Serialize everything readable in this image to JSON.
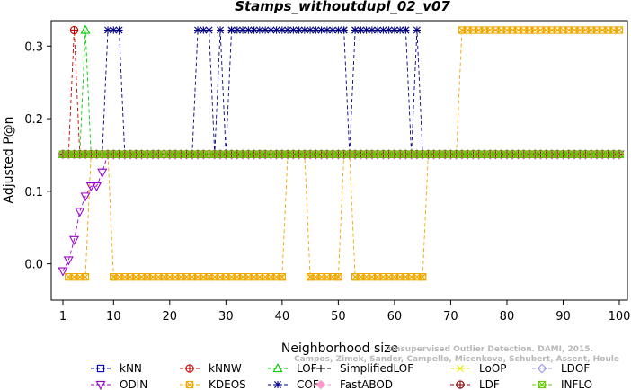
{
  "chart_data": {
    "type": "line",
    "title": "Stamps_withoutdupl_02_v07",
    "xlabel": "Neighborhood size",
    "ylabel": "Adjusted P@n",
    "xlim": [
      1,
      100
    ],
    "ylim": [
      -0.05,
      0.335
    ],
    "x_ticks": [
      1,
      10,
      20,
      30,
      40,
      50,
      60,
      70,
      80,
      90,
      100
    ],
    "y_ticks": [
      0.0,
      0.1,
      0.2,
      0.3
    ],
    "y_tick_labels": [
      "0.0",
      "0.1",
      "0.2",
      "0.3"
    ],
    "watermark": [
      "Unsupervised Outlier Detection. DAMI, 2015.",
      "Campos, Zimek, Sander, Campello, Micenkova, Schubert, Assent, Houle"
    ],
    "series": [
      {
        "name": "kNN",
        "color": "#0000cc",
        "marker": "square",
        "segments": [
          {
            "x": [
              1,
              100
            ],
            "y": 0.151,
            "type": "const"
          }
        ]
      },
      {
        "name": "kNNW",
        "color": "#cc0000",
        "marker": "circle-plus",
        "segments": [
          {
            "x": [
              1,
              2,
              3,
              4
            ],
            "y": [
              0.151,
              0.151,
              0.322,
              0.151
            ]
          },
          {
            "x": [
              4,
              100
            ],
            "y": 0.151,
            "type": "const"
          }
        ]
      },
      {
        "name": "LOF",
        "color": "#00cc00",
        "marker": "triangle-up",
        "segments": [
          {
            "x": [
              1,
              2,
              3,
              4,
              5,
              6
            ],
            "y": [
              0.151,
              0.151,
              0.151,
              0.151,
              0.322,
              0.151
            ]
          },
          {
            "x": [
              6,
              100
            ],
            "y": 0.151,
            "type": "const"
          }
        ]
      },
      {
        "name": "SimplifiedLOF",
        "color": "#000000",
        "marker": "plus",
        "segments": [
          {
            "x": [
              1,
              100
            ],
            "y": 0.151,
            "type": "const"
          }
        ]
      },
      {
        "name": "LoOP",
        "color": "#e8e800",
        "marker": "x",
        "segments": [
          {
            "x": [
              1,
              100
            ],
            "y": 0.151,
            "type": "const"
          }
        ]
      },
      {
        "name": "LDOF",
        "color": "#9999ee",
        "marker": "diamond",
        "segments": [
          {
            "x": [
              1,
              100
            ],
            "y": 0.151,
            "type": "const"
          }
        ]
      },
      {
        "name": "ODIN",
        "color": "#9900cc",
        "marker": "triangle-down",
        "segments": [
          {
            "x": [
              1,
              2,
              3,
              4,
              5,
              6,
              7,
              8,
              9
            ],
            "y": [
              -0.01,
              0.005,
              0.033,
              0.072,
              0.093,
              0.107,
              0.107,
              0.126,
              0.151
            ]
          },
          {
            "x": [
              9,
              100
            ],
            "y": 0.151,
            "type": "const"
          }
        ]
      },
      {
        "name": "KDEOS",
        "color": "#f0a800",
        "marker": "square-x",
        "segments": [
          {
            "x": [
              2,
              3,
              4,
              5,
              6,
              7,
              8,
              9,
              10
            ],
            "y": [
              -0.018,
              -0.018,
              -0.018,
              -0.018,
              0.151,
              0.151,
              0.151,
              0.151,
              -0.018
            ]
          },
          {
            "x": [
              10,
              40
            ],
            "y": -0.018,
            "type": "const"
          },
          {
            "x": [
              40,
              41,
              42,
              43,
              44,
              45
            ],
            "y": [
              -0.018,
              0.151,
              0.151,
              0.151,
              0.151,
              -0.018
            ]
          },
          {
            "x": [
              45,
              50
            ],
            "y": -0.018,
            "type": "const"
          },
          {
            "x": [
              50,
              51,
              52,
              53
            ],
            "y": [
              -0.018,
              0.151,
              0.151,
              -0.018
            ]
          },
          {
            "x": [
              53,
              65
            ],
            "y": -0.018,
            "type": "const"
          },
          {
            "x": [
              65,
              66,
              67,
              68,
              69,
              70,
              71,
              72
            ],
            "y": [
              -0.018,
              0.151,
              0.151,
              0.151,
              0.151,
              0.151,
              0.151,
              0.322
            ]
          },
          {
            "x": [
              72,
              100
            ],
            "y": 0.322,
            "type": "const"
          }
        ]
      },
      {
        "name": "COF",
        "color": "#000080",
        "marker": "asterisk",
        "segments": [
          {
            "x": [
              1,
              2,
              3,
              4,
              5,
              6,
              7,
              8,
              9,
              10,
              11,
              12,
              13
            ],
            "y": [
              0.151,
              0.151,
              0.151,
              0.151,
              0.151,
              0.151,
              0.151,
              0.151,
              0.322,
              0.322,
              0.322,
              0.151,
              0.151
            ]
          },
          {
            "x": [
              13,
              24
            ],
            "y": 0.151,
            "type": "const"
          },
          {
            "x": [
              24,
              25,
              26,
              27,
              28,
              29,
              30,
              31
            ],
            "y": [
              0.151,
              0.322,
              0.322,
              0.322,
              0.151,
              0.322,
              0.151,
              0.322
            ]
          },
          {
            "x": [
              31,
              51
            ],
            "y": 0.322,
            "type": "const"
          },
          {
            "x": [
              51,
              52,
              53
            ],
            "y": [
              0.322,
              0.151,
              0.322
            ]
          },
          {
            "x": [
              53,
              62
            ],
            "y": 0.322,
            "type": "const"
          },
          {
            "x": [
              62,
              63,
              64,
              65
            ],
            "y": [
              0.322,
              0.151,
              0.322,
              0.151
            ]
          },
          {
            "x": [
              65,
              100
            ],
            "y": 0.151,
            "type": "const"
          }
        ]
      },
      {
        "name": "FastABOD",
        "color": "#ff99cc",
        "marker": "diamond-filled",
        "segments": [
          {
            "x": [
              1,
              100
            ],
            "y": 0.151,
            "type": "const"
          }
        ]
      },
      {
        "name": "LDF",
        "color": "#990000",
        "marker": "circle-plus",
        "segments": [
          {
            "x": [
              1,
              100
            ],
            "y": 0.151,
            "type": "const"
          }
        ]
      },
      {
        "name": "INFLO",
        "color": "#66cc00",
        "marker": "square-x",
        "segments": [
          {
            "x": [
              1,
              100
            ],
            "y": 0.151,
            "type": "const"
          }
        ]
      }
    ],
    "legend": {
      "placement": "bottom",
      "rows": [
        [
          "kNN",
          "kNNW",
          "LOF",
          "SimplifiedLOF",
          "LoOP",
          "LDOF"
        ],
        [
          "ODIN",
          "KDEOS",
          "COF",
          "FastABOD",
          "LDF",
          "INFLO"
        ]
      ]
    }
  }
}
